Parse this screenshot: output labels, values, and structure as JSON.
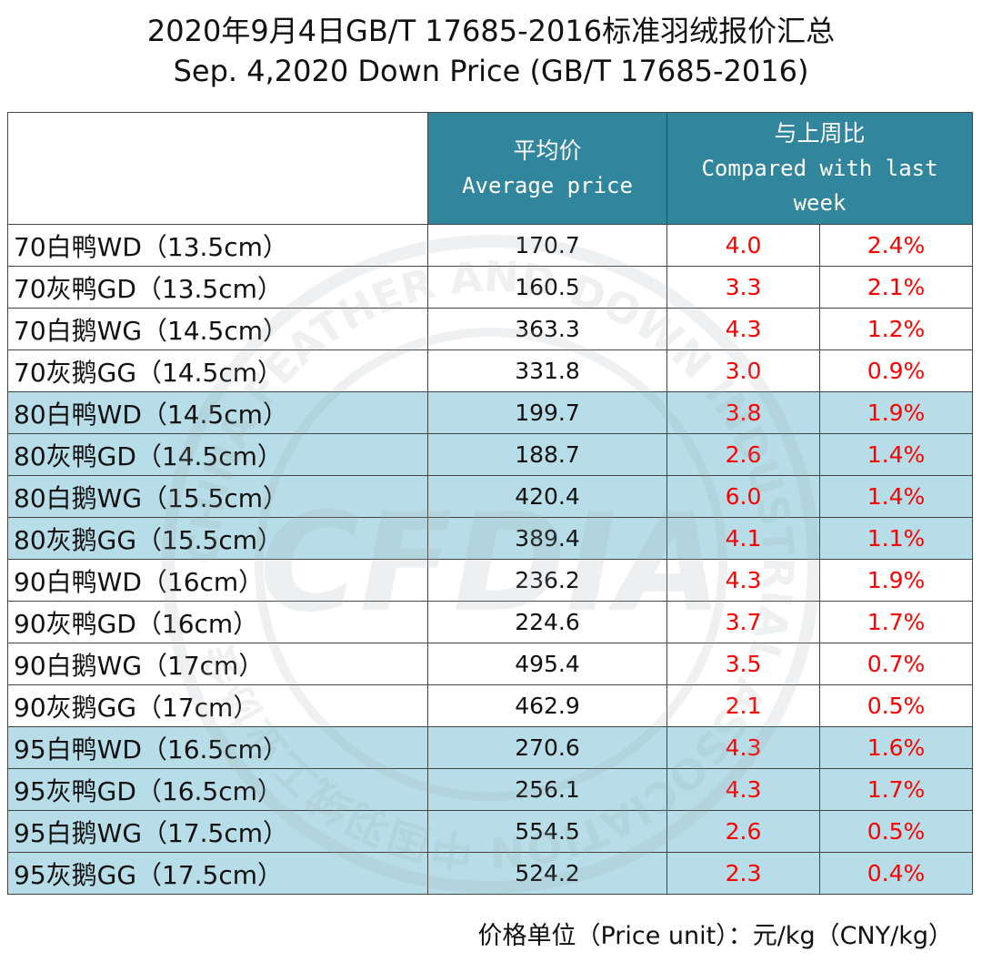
{
  "title_cn": "2020年9月4日GB/T 17685-2016标准羽绒报价汇总",
  "title_en": "Sep. 4,2020 Down Price (GB/T 17685-2016)",
  "header": {
    "avg_cn": "平均价",
    "avg_en": "Average price",
    "cmp_cn": "与上周比",
    "cmp_en_1": "Compared with last",
    "cmp_en_2": "week"
  },
  "rows": [
    {
      "name": "70白鸭WD（13.5cm）",
      "avg": "170.7",
      "change": "4.0",
      "pct": "2.4%"
    },
    {
      "name": "70灰鸭GD（13.5cm）",
      "avg": "160.5",
      "change": "3.3",
      "pct": "2.1%"
    },
    {
      "name": "70白鹅WG（14.5cm）",
      "avg": "363.3",
      "change": "4.3",
      "pct": "1.2%"
    },
    {
      "name": "70灰鹅GG（14.5cm）",
      "avg": "331.8",
      "change": "3.0",
      "pct": "0.9%"
    },
    {
      "name": "80白鸭WD（14.5cm）",
      "avg": "199.7",
      "change": "3.8",
      "pct": "1.9%"
    },
    {
      "name": "80灰鸭GD（14.5cm）",
      "avg": "188.7",
      "change": "2.6",
      "pct": "1.4%"
    },
    {
      "name": "80白鹅WG（15.5cm）",
      "avg": "420.4",
      "change": "6.0",
      "pct": "1.4%"
    },
    {
      "name": "80灰鹅GG（15.5cm）",
      "avg": "389.4",
      "change": "4.1",
      "pct": "1.1%"
    },
    {
      "name": "90白鸭WD（16cm）",
      "avg": "236.2",
      "change": "4.3",
      "pct": "1.9%"
    },
    {
      "name": "90灰鸭GD（16cm）",
      "avg": "224.6",
      "change": "3.7",
      "pct": "1.7%"
    },
    {
      "name": "90白鹅WG（17cm）",
      "avg": "495.4",
      "change": "3.5",
      "pct": "0.7%"
    },
    {
      "name": "90灰鹅GG（17cm）",
      "avg": "462.9",
      "change": "2.1",
      "pct": "0.5%"
    },
    {
      "name": "95白鸭WD（16.5cm）",
      "avg": "270.6",
      "change": "4.3",
      "pct": "1.6%"
    },
    {
      "name": "95灰鸭GD（16.5cm）",
      "avg": "256.1",
      "change": "4.3",
      "pct": "1.7%"
    },
    {
      "name": "95白鹅WG（17.5cm）",
      "avg": "554.5",
      "change": "2.6",
      "pct": "0.5%"
    },
    {
      "name": "95灰鹅GG（17.5cm）",
      "avg": "524.2",
      "change": "2.3",
      "pct": "0.4%"
    }
  ],
  "footnote": "价格单位（Price unit）：元/kg（CNY/kg）",
  "watermark": {
    "center_text": "CFDIA",
    "ring_text": "CHINA FEATHER AND DOWN INDUSTRIAL ASSOCIATION 中国羽绒工业协会"
  },
  "colors": {
    "header_bg": "#31859c",
    "band_blue": "#b7dee8",
    "change_text": "#ff0000"
  }
}
